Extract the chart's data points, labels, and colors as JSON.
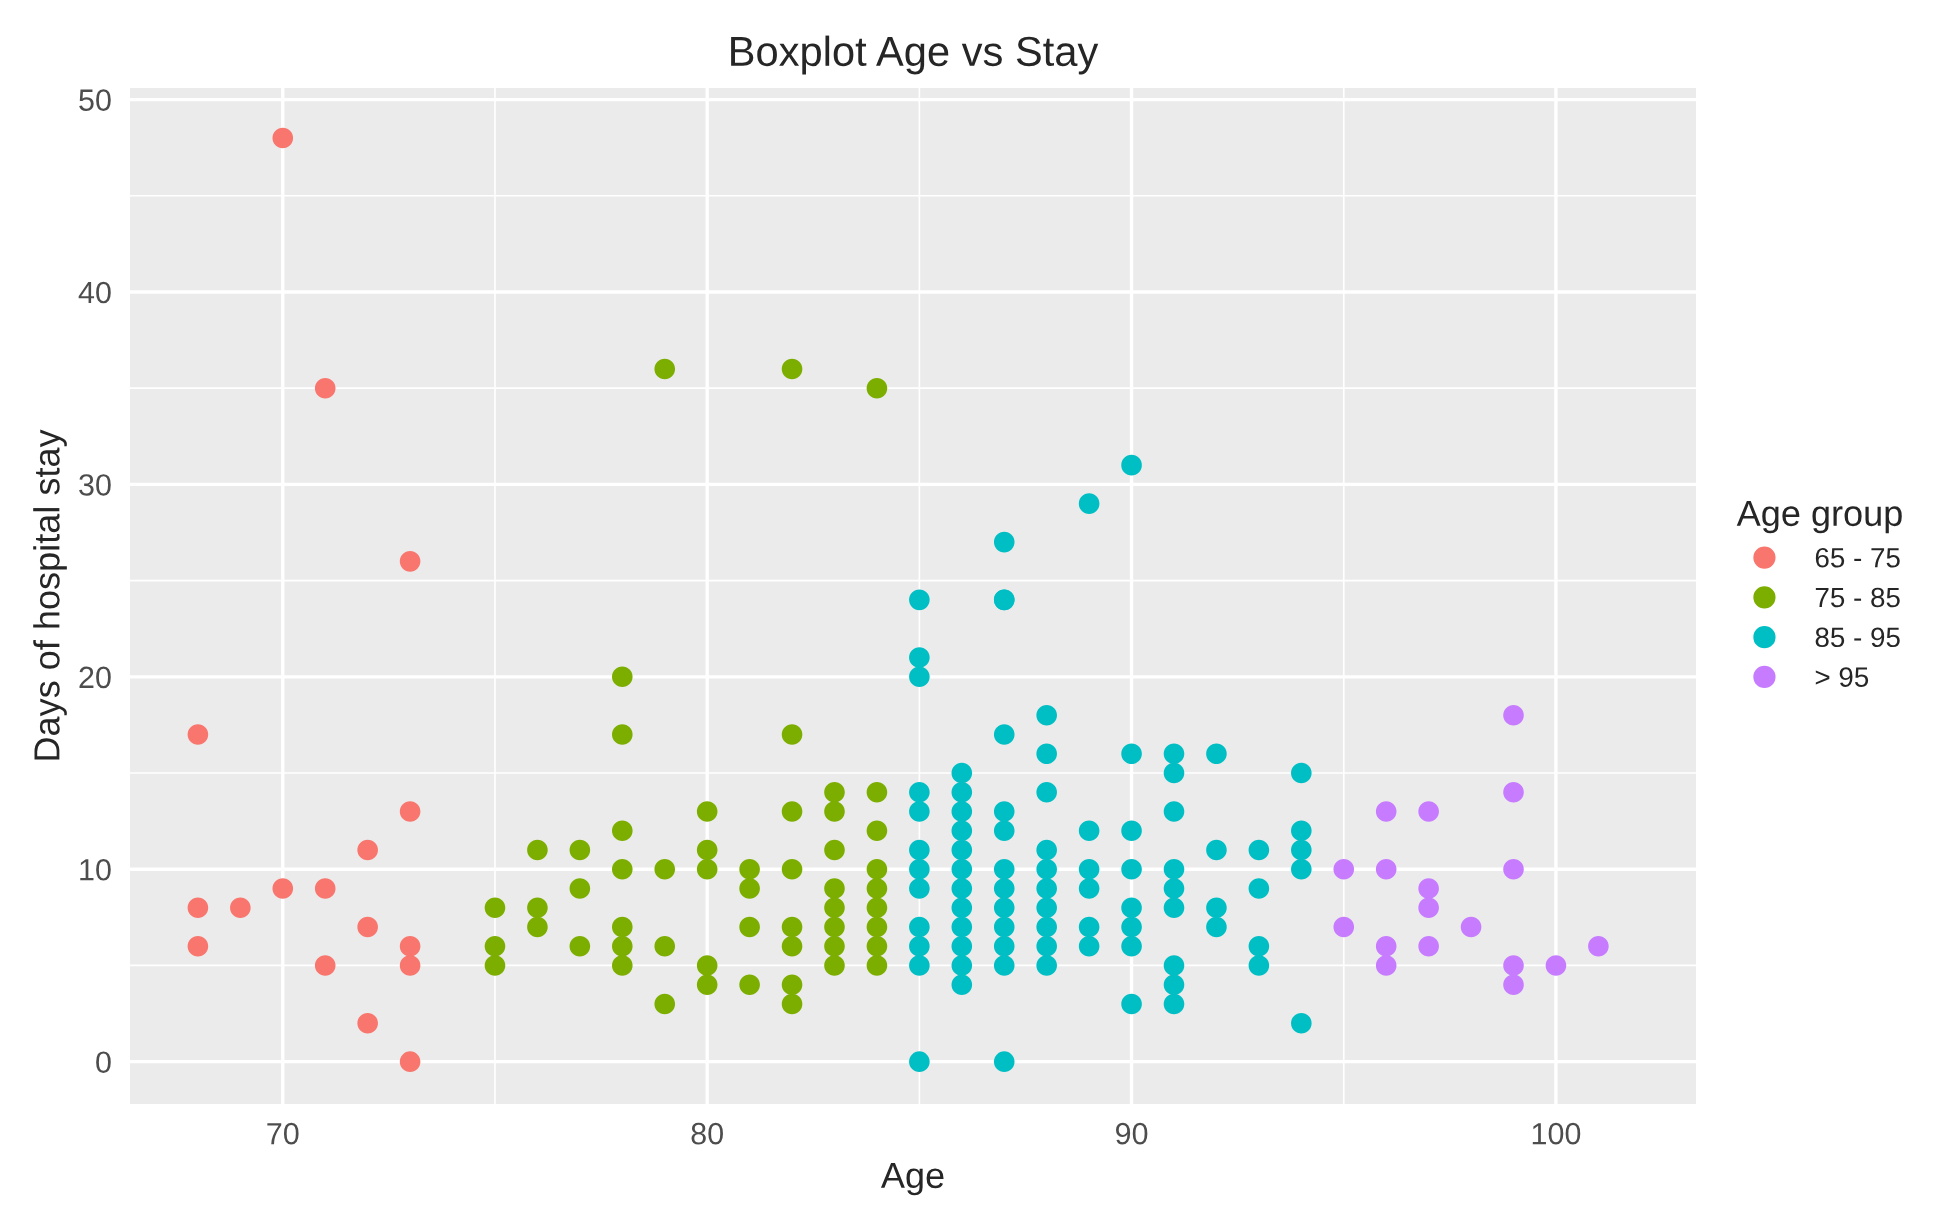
{
  "chart_data": {
    "type": "scatter",
    "title": "Boxplot Age vs Stay",
    "xlabel": "Age",
    "ylabel": "Days of hospital stay",
    "legend_title": "Age group",
    "legend": "right",
    "grid": true,
    "marker": "circle",
    "xlim": [
      66.4,
      103.3
    ],
    "ylim": [
      -2.2,
      50.6
    ],
    "xticks": [
      70,
      80,
      90,
      100
    ],
    "yticks": [
      0,
      10,
      20,
      30,
      40,
      50
    ],
    "series": [
      {
        "name": "65 - 75",
        "color": "#f8766d",
        "x": [
          68,
          68,
          68,
          69,
          70,
          70,
          71,
          71,
          71,
          72,
          72,
          72,
          73,
          73,
          73,
          73,
          73
        ],
        "values": [
          17,
          8,
          6,
          8,
          48,
          9,
          35,
          9,
          5,
          11,
          7,
          2,
          26,
          13,
          6,
          5,
          0
        ]
      },
      {
        "name": "75 - 85",
        "color": "#7cae00",
        "x": [
          75,
          75,
          75,
          76,
          76,
          76,
          77,
          77,
          77,
          78,
          78,
          78,
          78,
          78,
          78,
          78,
          79,
          79,
          79,
          79,
          80,
          80,
          80,
          80,
          80,
          81,
          81,
          81,
          81,
          82,
          82,
          82,
          82,
          82,
          82,
          82,
          82,
          83,
          83,
          83,
          83,
          83,
          83,
          83,
          83,
          84,
          84,
          84,
          84,
          84,
          84,
          84,
          84,
          84
        ],
        "values": [
          8,
          6,
          5,
          11,
          8,
          7,
          11,
          9,
          6,
          20,
          17,
          12,
          10,
          7,
          6,
          5,
          36,
          10,
          6,
          3,
          13,
          11,
          10,
          5,
          4,
          10,
          9,
          7,
          4,
          36,
          17,
          13,
          10,
          7,
          6,
          4,
          3,
          14,
          13,
          11,
          9,
          8,
          7,
          6,
          5,
          35,
          14,
          12,
          10,
          9,
          8,
          7,
          6,
          5
        ]
      },
      {
        "name": "85 - 95",
        "color": "#00bfc4",
        "x": [
          85,
          85,
          85,
          85,
          85,
          85,
          85,
          85,
          85,
          85,
          85,
          85,
          86,
          86,
          86,
          86,
          86,
          86,
          86,
          86,
          86,
          86,
          86,
          86,
          87,
          87,
          87,
          87,
          87,
          87,
          87,
          87,
          87,
          87,
          87,
          87,
          87,
          88,
          88,
          88,
          88,
          88,
          88,
          88,
          88,
          88,
          88,
          89,
          89,
          89,
          89,
          89,
          89,
          90,
          90,
          90,
          90,
          90,
          90,
          90,
          90,
          91,
          91,
          91,
          91,
          91,
          91,
          91,
          91,
          91,
          92,
          92,
          92,
          92,
          93,
          93,
          93,
          93,
          94,
          94,
          94,
          94,
          94
        ],
        "values": [
          24,
          21,
          20,
          14,
          13,
          11,
          10,
          9,
          7,
          6,
          5,
          0,
          15,
          14,
          13,
          12,
          11,
          10,
          9,
          8,
          7,
          6,
          5,
          4,
          27,
          24,
          17,
          13,
          12,
          10,
          9,
          8,
          7,
          6,
          5,
          0,
          24,
          18,
          16,
          14,
          11,
          10,
          9,
          8,
          7,
          6,
          5,
          29,
          12,
          10,
          9,
          7,
          6,
          31,
          16,
          12,
          10,
          8,
          7,
          6,
          3,
          16,
          15,
          13,
          10,
          9,
          8,
          5,
          4,
          3,
          16,
          11,
          8,
          7,
          11,
          9,
          6,
          5,
          15,
          12,
          11,
          10,
          2
        ]
      },
      {
        "name": "> 95",
        "color": "#c77cff",
        "x": [
          95,
          95,
          96,
          96,
          96,
          96,
          97,
          97,
          97,
          97,
          98,
          99,
          99,
          99,
          99,
          99,
          100,
          101
        ],
        "values": [
          10,
          7,
          13,
          10,
          6,
          5,
          13,
          9,
          8,
          6,
          7,
          18,
          14,
          10,
          5,
          4,
          5,
          6
        ]
      }
    ]
  }
}
